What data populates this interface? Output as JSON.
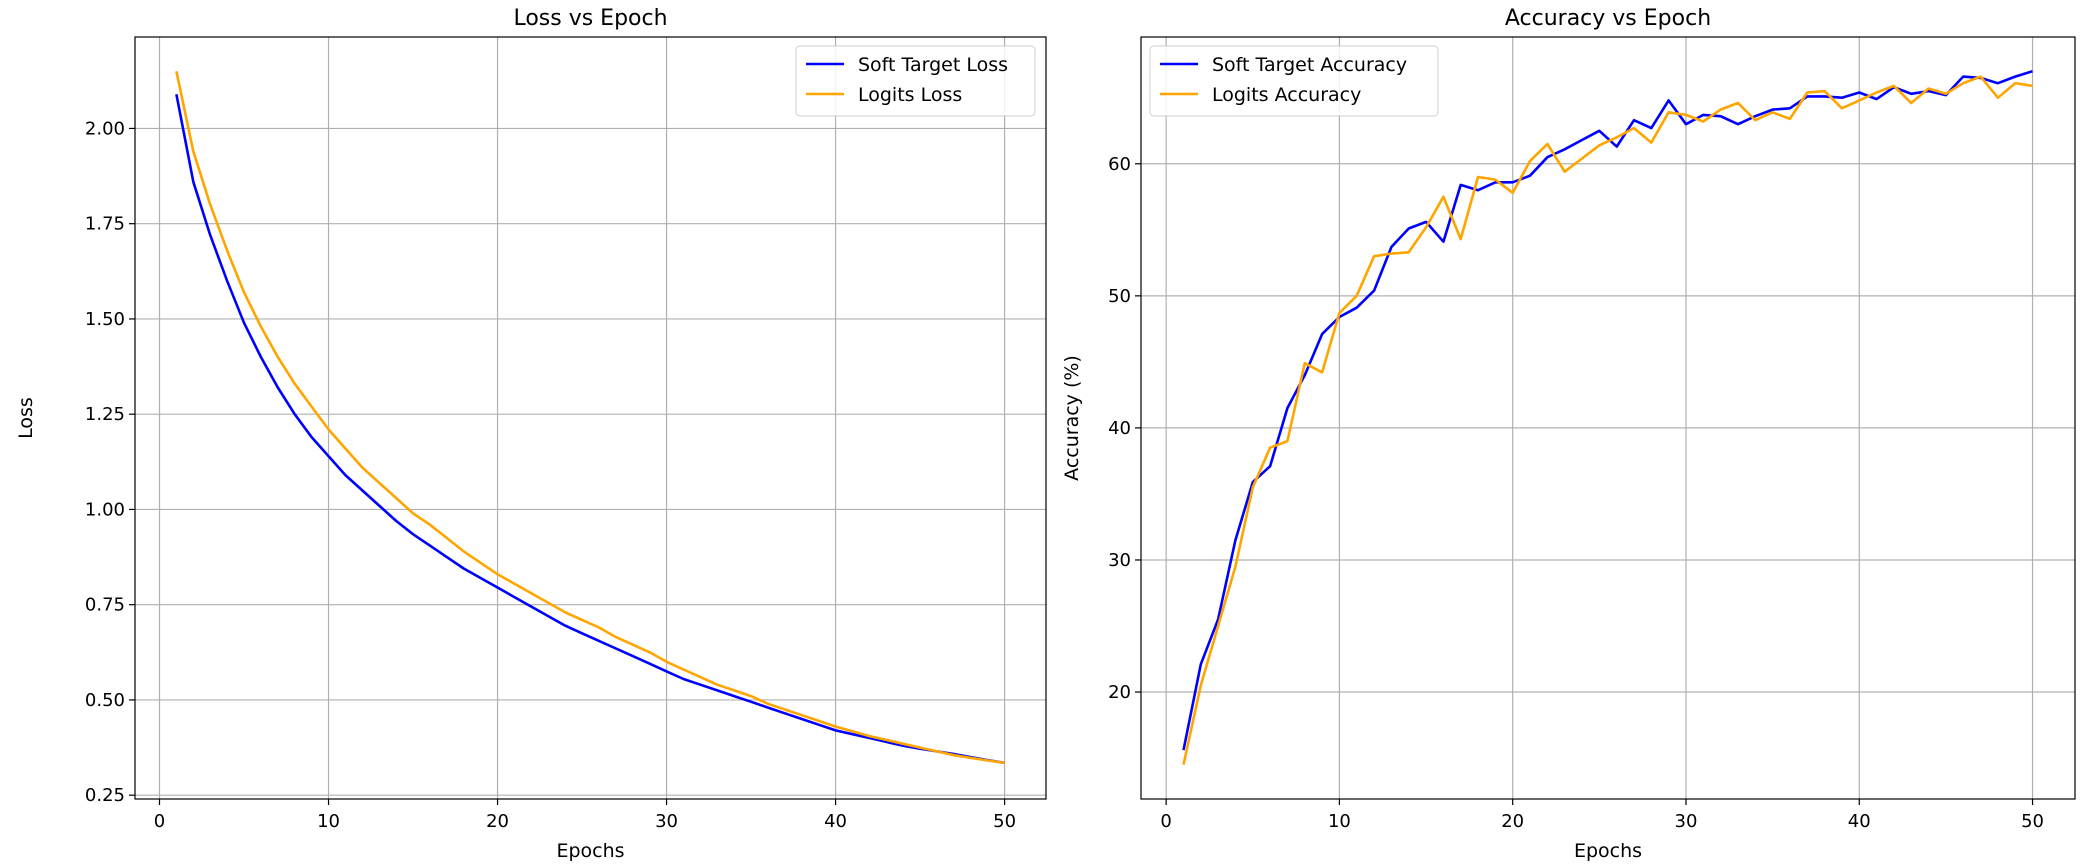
{
  "chart_data": [
    {
      "type": "line",
      "title": "Loss vs Epoch",
      "xlabel": "Epochs",
      "ylabel": "Loss",
      "xlim": [
        -1.45,
        52.45
      ],
      "ylim": [
        0.24,
        2.24
      ],
      "xticks": [
        0,
        10,
        20,
        30,
        40,
        50
      ],
      "xtick_labels": [
        "0",
        "10",
        "20",
        "30",
        "40",
        "50"
      ],
      "yticks": [
        0.25,
        0.5,
        0.75,
        1.0,
        1.25,
        1.5,
        1.75,
        2.0
      ],
      "ytick_labels": [
        "0.25",
        "0.50",
        "0.75",
        "1.00",
        "1.25",
        "1.50",
        "1.75",
        "2.00"
      ],
      "grid": true,
      "legend_position": "top-right",
      "x": [
        1,
        2,
        3,
        4,
        5,
        6,
        7,
        8,
        9,
        10,
        11,
        12,
        13,
        14,
        15,
        16,
        17,
        18,
        19,
        20,
        21,
        22,
        23,
        24,
        25,
        26,
        27,
        28,
        29,
        30,
        31,
        32,
        33,
        34,
        35,
        36,
        37,
        38,
        39,
        40,
        41,
        42,
        43,
        44,
        45,
        46,
        47,
        48,
        49,
        50
      ],
      "series": [
        {
          "name": "Soft Target Loss",
          "color": "#0000ff",
          "values": [
            2.09,
            1.86,
            1.72,
            1.6,
            1.49,
            1.4,
            1.32,
            1.25,
            1.19,
            1.14,
            1.09,
            1.05,
            1.01,
            0.97,
            0.935,
            0.905,
            0.875,
            0.845,
            0.82,
            0.795,
            0.77,
            0.745,
            0.72,
            0.695,
            0.675,
            0.655,
            0.635,
            0.615,
            0.595,
            0.575,
            0.555,
            0.54,
            0.525,
            0.51,
            0.495,
            0.48,
            0.465,
            0.45,
            0.435,
            0.42,
            0.41,
            0.4,
            0.39,
            0.38,
            0.372,
            0.365,
            0.358,
            0.35,
            0.342,
            0.335
          ]
        },
        {
          "name": "Logits Loss",
          "color": "#ffa500",
          "values": [
            2.15,
            1.94,
            1.8,
            1.68,
            1.57,
            1.48,
            1.4,
            1.33,
            1.27,
            1.21,
            1.16,
            1.11,
            1.07,
            1.03,
            0.99,
            0.96,
            0.925,
            0.89,
            0.86,
            0.83,
            0.805,
            0.78,
            0.755,
            0.73,
            0.71,
            0.69,
            0.665,
            0.645,
            0.625,
            0.6,
            0.58,
            0.56,
            0.54,
            0.525,
            0.51,
            0.49,
            0.475,
            0.46,
            0.445,
            0.43,
            0.418,
            0.405,
            0.395,
            0.385,
            0.375,
            0.365,
            0.355,
            0.348,
            0.341,
            0.335
          ]
        }
      ]
    },
    {
      "type": "line",
      "title": "Accuracy vs Epoch",
      "xlabel": "Epochs",
      "ylabel": "Accuracy (%)",
      "xlim": [
        -1.45,
        52.45
      ],
      "ylim": [
        11.9,
        69.6
      ],
      "xticks": [
        0,
        10,
        20,
        30,
        40,
        50
      ],
      "xtick_labels": [
        "0",
        "10",
        "20",
        "30",
        "40",
        "50"
      ],
      "yticks": [
        20,
        30,
        40,
        50,
        60
      ],
      "ytick_labels": [
        "20",
        "30",
        "40",
        "50",
        "60"
      ],
      "grid": true,
      "legend_position": "top-left",
      "x": [
        1,
        2,
        3,
        4,
        5,
        6,
        7,
        8,
        9,
        10,
        11,
        12,
        13,
        14,
        15,
        16,
        17,
        18,
        19,
        20,
        21,
        22,
        23,
        24,
        25,
        26,
        27,
        28,
        29,
        30,
        31,
        32,
        33,
        34,
        35,
        36,
        37,
        38,
        39,
        40,
        41,
        42,
        43,
        44,
        45,
        46,
        47,
        48,
        49,
        50
      ],
      "series": [
        {
          "name": "Soft Target Accuracy",
          "color": "#0000ff",
          "values": [
            15.6,
            22.1,
            25.5,
            31.5,
            35.9,
            37.1,
            41.5,
            44.0,
            47.1,
            48.4,
            49.1,
            50.4,
            53.7,
            55.1,
            55.6,
            54.1,
            58.4,
            58.0,
            58.6,
            58.6,
            59.1,
            60.5,
            61.1,
            61.8,
            62.5,
            61.3,
            63.3,
            62.7,
            64.8,
            63.0,
            63.7,
            63.6,
            63.0,
            63.6,
            64.1,
            64.2,
            65.1,
            65.1,
            65.0,
            65.4,
            64.9,
            65.8,
            65.3,
            65.5,
            65.2,
            66.6,
            66.5,
            66.1,
            66.6,
            67.0
          ]
        },
        {
          "name": "Logits Accuracy",
          "color": "#ffa500",
          "values": [
            14.5,
            20.5,
            25.0,
            29.5,
            35.5,
            38.5,
            39.0,
            44.9,
            44.2,
            48.7,
            50.0,
            53.0,
            53.2,
            53.3,
            55.2,
            57.5,
            54.3,
            59.0,
            58.8,
            57.8,
            60.2,
            61.5,
            59.4,
            60.4,
            61.4,
            62.0,
            62.7,
            61.6,
            63.9,
            63.7,
            63.2,
            64.1,
            64.6,
            63.3,
            63.9,
            63.4,
            65.4,
            65.5,
            64.2,
            64.8,
            65.4,
            65.9,
            64.6,
            65.7,
            65.3,
            66.1,
            66.6,
            65.0,
            66.1,
            65.9
          ]
        }
      ]
    }
  ]
}
